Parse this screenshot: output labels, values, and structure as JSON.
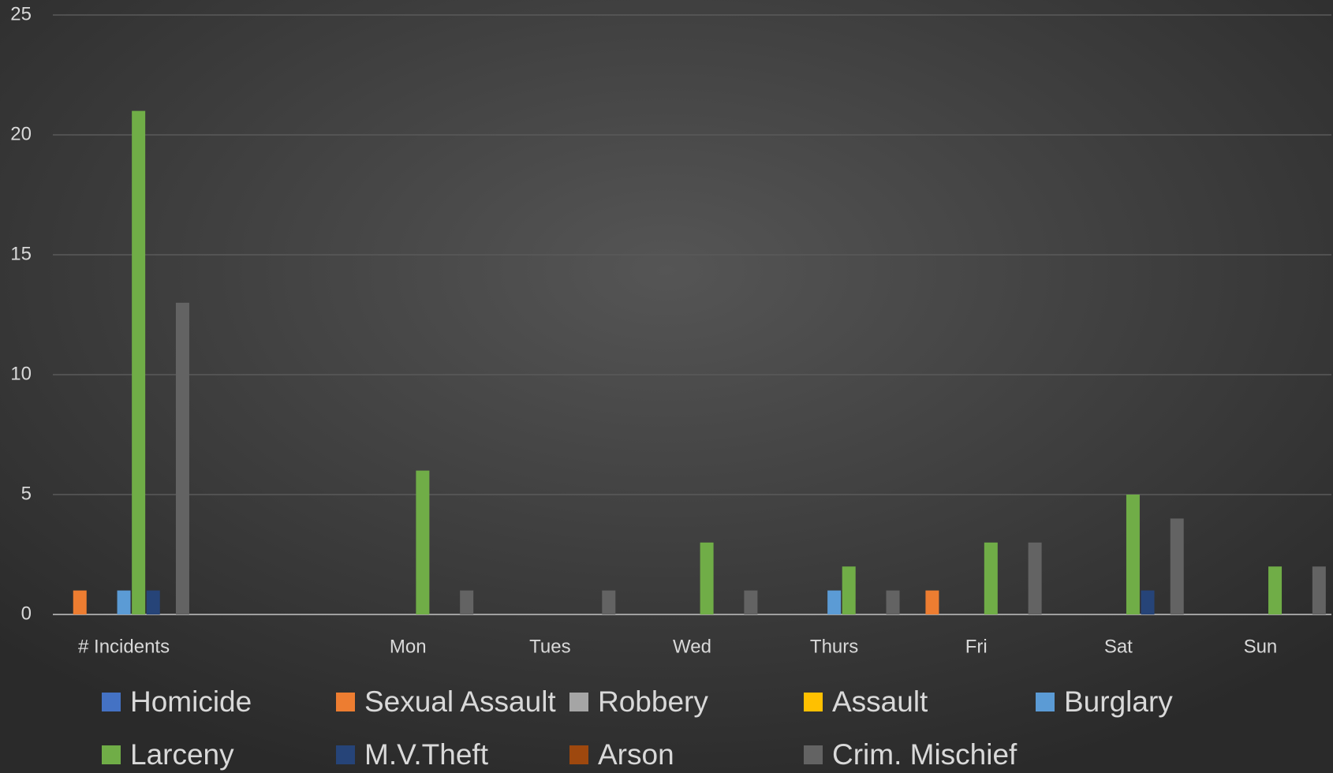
{
  "chart_data": {
    "type": "bar",
    "categories": [
      "# Incidents",
      null,
      "Mon",
      "Tues",
      "Wed",
      "Thurs",
      "Fri",
      "Sat",
      "Sun"
    ],
    "series": [
      {
        "name": "Homicide",
        "color": "#4472c4",
        "values": [
          0,
          null,
          0,
          0,
          0,
          0,
          0,
          0,
          0
        ]
      },
      {
        "name": "Sexual Assault",
        "color": "#ed7d31",
        "values": [
          1,
          null,
          0,
          0,
          0,
          0,
          1,
          0,
          0
        ]
      },
      {
        "name": "Robbery",
        "color": "#a5a5a5",
        "values": [
          0,
          null,
          0,
          0,
          0,
          0,
          0,
          0,
          0
        ]
      },
      {
        "name": "Assault",
        "color": "#ffc000",
        "values": [
          0,
          null,
          0,
          0,
          0,
          0,
          0,
          0,
          0
        ]
      },
      {
        "name": "Burglary",
        "color": "#5b9bd5",
        "values": [
          1,
          null,
          0,
          0,
          0,
          1,
          0,
          0,
          0
        ]
      },
      {
        "name": "Larceny",
        "color": "#70ad47",
        "values": [
          21,
          null,
          6,
          0,
          3,
          2,
          3,
          5,
          2
        ]
      },
      {
        "name": "M.V.Theft",
        "color": "#264478",
        "values": [
          1,
          null,
          0,
          0,
          0,
          0,
          0,
          1,
          0
        ]
      },
      {
        "name": "Arson",
        "color": "#9e480e",
        "values": [
          0,
          null,
          0,
          0,
          0,
          0,
          0,
          0,
          0
        ]
      },
      {
        "name": "Crim. Mischief",
        "color": "#636363",
        "values": [
          13,
          null,
          1,
          1,
          1,
          1,
          3,
          4,
          2
        ]
      }
    ],
    "ylim": [
      0,
      25
    ],
    "yticks": [
      0,
      5,
      10,
      15,
      20,
      25
    ],
    "grid": true,
    "legend": "bottom"
  }
}
